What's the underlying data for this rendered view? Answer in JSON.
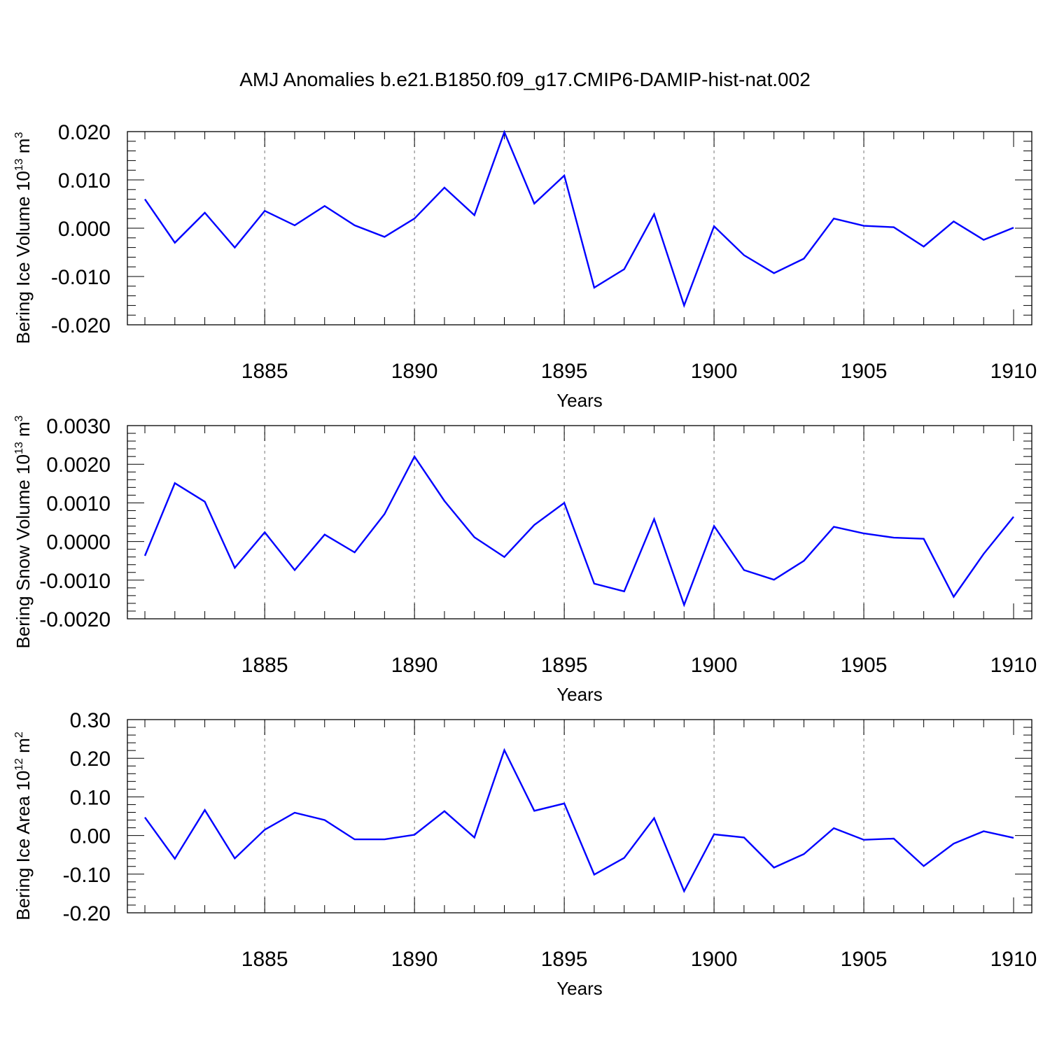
{
  "title": "AMJ Anomalies b.e21.B1850.f09_g17.CMIP6-DAMIP-hist-nat.002",
  "colors": {
    "line": "#0000ff",
    "axis": "#000000",
    "grid": "#8c8c8c"
  },
  "chart_data": [
    {
      "type": "line",
      "xlabel": "Years",
      "ylabel": "Bering Ice Volume 10",
      "ylabel_exp": "13",
      "ylabel_unit": " m",
      "ylabel_unit_exp": "3",
      "xlim": [
        1881,
        1910
      ],
      "ylim": [
        -0.02,
        0.02
      ],
      "yticks": [
        -0.02,
        -0.01,
        0.0,
        0.01,
        0.02
      ],
      "yticklabels": [
        "-0.020",
        "-0.010",
        "0.000",
        "0.010",
        "0.020"
      ],
      "xticks": [
        1885,
        1890,
        1895,
        1900,
        1905,
        1910
      ],
      "xticklabels": [
        "1885",
        "1890",
        "1895",
        "1900",
        "1905",
        "1910"
      ],
      "grid": "vertical dotted at major x ticks",
      "x": [
        1881,
        1882,
        1883,
        1884,
        1885,
        1886,
        1887,
        1888,
        1889,
        1890,
        1891,
        1892,
        1893,
        1894,
        1895,
        1896,
        1897,
        1898,
        1899,
        1900,
        1901,
        1902,
        1903,
        1904,
        1905,
        1906,
        1907,
        1908,
        1909,
        1910
      ],
      "values": [
        0.006,
        -0.003,
        0.0032,
        -0.004,
        0.0036,
        0.0006,
        0.0046,
        0.0006,
        -0.0018,
        0.002,
        0.0084,
        0.0027,
        0.0199,
        0.0051,
        0.0109,
        -0.0123,
        -0.0085,
        0.0029,
        -0.016,
        0.0004,
        -0.0056,
        -0.0093,
        -0.0063,
        0.002,
        0.0005,
        0.0002,
        -0.0038,
        0.0014,
        -0.0024,
        0.0001
      ]
    },
    {
      "type": "line",
      "xlabel": "Years",
      "ylabel": "Bering Snow Volume 10",
      "ylabel_exp": "13",
      "ylabel_unit": " m",
      "ylabel_unit_exp": "3",
      "xlim": [
        1881,
        1910
      ],
      "ylim": [
        -0.002,
        0.003
      ],
      "yticks": [
        -0.002,
        -0.001,
        0.0,
        0.001,
        0.002,
        0.003
      ],
      "yticklabels": [
        "-0.0020",
        "-0.0010",
        "0.0000",
        "0.0010",
        "0.0020",
        "0.0030"
      ],
      "xticks": [
        1885,
        1890,
        1895,
        1900,
        1905,
        1910
      ],
      "xticklabels": [
        "1885",
        "1890",
        "1895",
        "1900",
        "1905",
        "1910"
      ],
      "grid": "vertical dotted at major x ticks",
      "x": [
        1881,
        1882,
        1883,
        1884,
        1885,
        1886,
        1887,
        1888,
        1889,
        1890,
        1891,
        1892,
        1893,
        1894,
        1895,
        1896,
        1897,
        1898,
        1899,
        1900,
        1901,
        1902,
        1903,
        1904,
        1905,
        1906,
        1907,
        1908,
        1909,
        1910
      ],
      "values": [
        -0.00037,
        0.00151,
        0.00103,
        -0.00068,
        0.00024,
        -0.00074,
        0.00018,
        -0.00028,
        0.00071,
        0.0022,
        0.00105,
        0.00011,
        -0.0004,
        0.00043,
        0.001,
        -0.00109,
        -0.00129,
        0.00058,
        -0.00164,
        0.0004,
        -0.00074,
        -0.00099,
        -0.0005,
        0.00038,
        0.00021,
        0.0001,
        7e-05,
        -0.00143,
        -0.00032,
        0.00064
      ]
    },
    {
      "type": "line",
      "xlabel": "Years",
      "ylabel": "Bering Ice Area 10",
      "ylabel_exp": "12",
      "ylabel_unit": " m",
      "ylabel_unit_exp": "2",
      "xlim": [
        1881,
        1910
      ],
      "ylim": [
        -0.2,
        0.3
      ],
      "yticks": [
        -0.2,
        -0.1,
        0.0,
        0.1,
        0.2,
        0.3
      ],
      "yticklabels": [
        "-0.20",
        "-0.10",
        "0.00",
        "0.10",
        "0.20",
        "0.30"
      ],
      "xticks": [
        1885,
        1890,
        1895,
        1900,
        1905,
        1910
      ],
      "xticklabels": [
        "1885",
        "1890",
        "1895",
        "1900",
        "1905",
        "1910"
      ],
      "grid": "vertical dotted at major x ticks",
      "x": [
        1881,
        1882,
        1883,
        1884,
        1885,
        1886,
        1887,
        1888,
        1889,
        1890,
        1891,
        1892,
        1893,
        1894,
        1895,
        1896,
        1897,
        1898,
        1899,
        1900,
        1901,
        1902,
        1903,
        1904,
        1905,
        1906,
        1907,
        1908,
        1909,
        1910
      ],
      "values": [
        0.047,
        -0.06,
        0.066,
        -0.059,
        0.015,
        0.059,
        0.04,
        -0.01,
        -0.01,
        0.002,
        0.063,
        -0.005,
        0.221,
        0.064,
        0.083,
        -0.101,
        -0.058,
        0.045,
        -0.144,
        0.003,
        -0.005,
        -0.083,
        -0.048,
        0.019,
        -0.011,
        -0.008,
        -0.079,
        -0.021,
        0.011,
        -0.006
      ]
    }
  ]
}
